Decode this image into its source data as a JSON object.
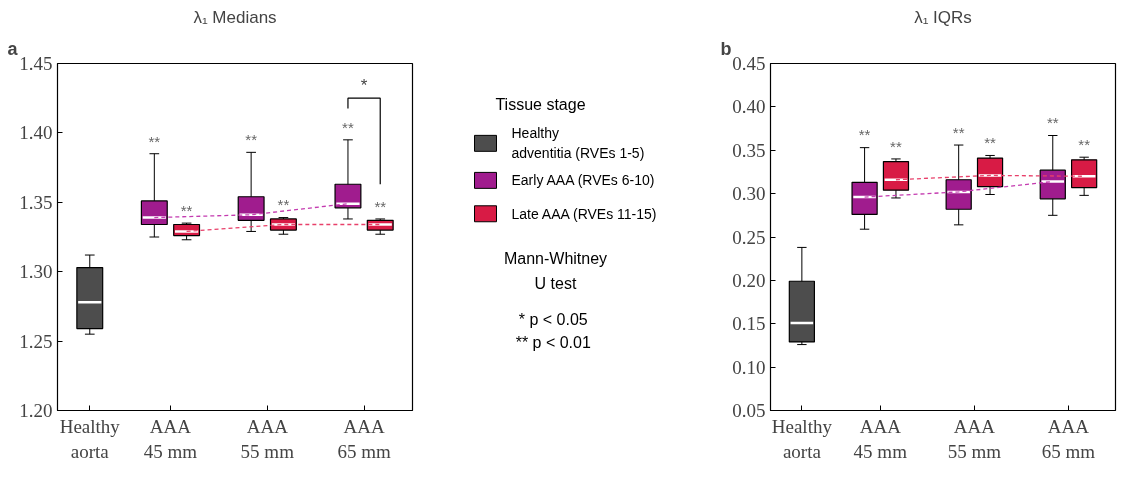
{
  "chart_data": [
    {
      "type": "box",
      "title": "λ₁ Medians",
      "categories": [
        "Healthy\naorta",
        "AAA\n45 mm",
        "AAA\n55 mm",
        "AAA\n65 mm"
      ],
      "ylim": [
        1.2,
        1.45
      ],
      "yticks": [
        {
          "value": 1.2,
          "label": "1.20"
        },
        {
          "value": 1.25,
          "label": "1.25"
        },
        {
          "value": 1.3,
          "label": "1.30"
        },
        {
          "value": 1.35,
          "label": "1.35"
        },
        {
          "value": 1.4,
          "label": "1.40"
        },
        {
          "value": 1.45,
          "label": "1.45"
        }
      ],
      "grid": false,
      "legend": "right",
      "legend_title": "Tissue stage",
      "series": [
        {
          "name": "Healthy\nadventitia (RVEs 1-5)",
          "color": "#4d4d4d",
          "boxes": [
            {
              "low": 1.255,
              "q1": 1.259,
              "median": 1.278,
              "q3": 1.303,
              "high": 1.312
            },
            null,
            null,
            null
          ]
        },
        {
          "name": "Early AAA (RVEs 6-10)",
          "color": "#a01c8e",
          "value_labels": [
            null,
            "**",
            "**",
            "**"
          ],
          "boxes": [
            null,
            {
              "low": 1.325,
              "q1": 1.334,
              "median": 1.339,
              "q3": 1.351,
              "high": 1.385
            },
            {
              "low": 1.329,
              "q1": 1.337,
              "median": 1.341,
              "q3": 1.354,
              "high": 1.386
            },
            {
              "low": 1.338,
              "q1": 1.346,
              "median": 1.349,
              "q3": 1.363,
              "high": 1.395
            }
          ]
        },
        {
          "name": "Late AAA (RVEs 11-15)",
          "color": "#d81b45",
          "value_labels": [
            null,
            "**",
            "**",
            "**"
          ],
          "boxes": [
            null,
            {
              "low": 1.323,
              "q1": 1.326,
              "median": 1.329,
              "q3": 1.334,
              "high": 1.335
            },
            {
              "low": 1.327,
              "q1": 1.33,
              "median": 1.334,
              "q3": 1.338,
              "high": 1.339
            },
            {
              "low": 1.327,
              "q1": 1.33,
              "median": 1.334,
              "q3": 1.337,
              "high": 1.338
            }
          ]
        },
        {
          "type": "line",
          "color": "#c43bb0",
          "line_style": "dashed",
          "values": [
            null,
            1.339,
            1.341,
            1.349
          ]
        },
        {
          "type": "line",
          "color": "#e8406a",
          "line_style": "dashed",
          "values": [
            null,
            1.329,
            1.334,
            1.334
          ]
        }
      ],
      "annotations": [
        "a",
        "*",
        "Mann-Whitney\nU test",
        "*  p < 0.05",
        "**  p < 0.01"
      ]
    },
    {
      "type": "box",
      "title": "λ₁ IQRs",
      "categories": [
        "Healthy\naorta",
        "AAA\n45 mm",
        "AAA\n55 mm",
        "AAA\n65 mm"
      ],
      "ylim": [
        0.05,
        0.45
      ],
      "yticks": [
        {
          "value": 0.05,
          "label": "0.05"
        },
        {
          "value": 0.1,
          "label": "0.10"
        },
        {
          "value": 0.15,
          "label": "0.15"
        },
        {
          "value": 0.2,
          "label": "0.20"
        },
        {
          "value": 0.25,
          "label": "0.25"
        },
        {
          "value": 0.3,
          "label": "0.30"
        },
        {
          "value": 0.35,
          "label": "0.35"
        },
        {
          "value": 0.4,
          "label": "0.40"
        },
        {
          "value": 0.45,
          "label": "0.45"
        }
      ],
      "grid": false,
      "series": [
        {
          "color": "#4d4d4d",
          "boxes": [
            {
              "low": 0.126,
              "q1": 0.129,
              "median": 0.151,
              "q3": 0.199,
              "high": 0.238
            },
            null,
            null,
            null
          ]
        },
        {
          "color": "#a01c8e",
          "value_labels": [
            null,
            "**",
            "**",
            "**"
          ],
          "boxes": [
            null,
            {
              "low": 0.259,
              "q1": 0.276,
              "median": 0.296,
              "q3": 0.313,
              "high": 0.353
            },
            {
              "low": 0.264,
              "q1": 0.282,
              "median": 0.302,
              "q3": 0.316,
              "high": 0.356
            },
            {
              "low": 0.275,
              "q1": 0.294,
              "median": 0.314,
              "q3": 0.327,
              "high": 0.367
            }
          ]
        },
        {
          "color": "#d81b45",
          "value_labels": [
            null,
            "**",
            "**",
            "**"
          ],
          "boxes": [
            null,
            {
              "low": 0.295,
              "q1": 0.304,
              "median": 0.316,
              "q3": 0.337,
              "high": 0.34
            },
            {
              "low": 0.299,
              "q1": 0.308,
              "median": 0.321,
              "q3": 0.341,
              "high": 0.344
            },
            {
              "low": 0.298,
              "q1": 0.307,
              "median": 0.32,
              "q3": 0.339,
              "high": 0.342
            }
          ]
        },
        {
          "type": "line",
          "color": "#c43bb0",
          "line_style": "dashed",
          "values": [
            null,
            0.296,
            0.302,
            0.314
          ]
        },
        {
          "type": "line",
          "color": "#e8406a",
          "line_style": "dashed",
          "values": [
            null,
            0.316,
            0.321,
            0.32
          ]
        }
      ],
      "annotations": [
        "b"
      ]
    }
  ]
}
